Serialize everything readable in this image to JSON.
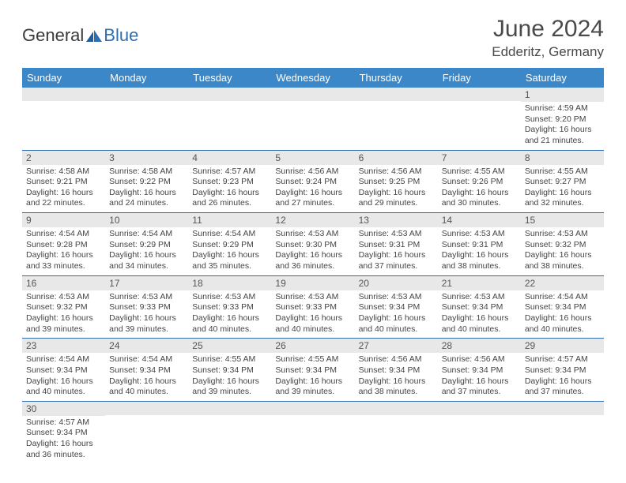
{
  "logo": {
    "text1": "General",
    "text2": "Blue"
  },
  "title": "June 2024",
  "location": "Edderitz, Germany",
  "weekdays": [
    "Sunday",
    "Monday",
    "Tuesday",
    "Wednesday",
    "Thursday",
    "Friday",
    "Saturday"
  ],
  "colors": {
    "header_bg": "#3b87c8",
    "header_text": "#ffffff",
    "daynum_bg": "#e8e8e8",
    "border": "#2f6fb0",
    "logo_blue": "#2f6fb0"
  },
  "cells": [
    [
      {
        "day": "",
        "lines": []
      },
      {
        "day": "",
        "lines": []
      },
      {
        "day": "",
        "lines": []
      },
      {
        "day": "",
        "lines": []
      },
      {
        "day": "",
        "lines": []
      },
      {
        "day": "",
        "lines": []
      },
      {
        "day": "1",
        "lines": [
          "Sunrise: 4:59 AM",
          "Sunset: 9:20 PM",
          "Daylight: 16 hours and 21 minutes."
        ]
      }
    ],
    [
      {
        "day": "2",
        "lines": [
          "Sunrise: 4:58 AM",
          "Sunset: 9:21 PM",
          "Daylight: 16 hours and 22 minutes."
        ]
      },
      {
        "day": "3",
        "lines": [
          "Sunrise: 4:58 AM",
          "Sunset: 9:22 PM",
          "Daylight: 16 hours and 24 minutes."
        ]
      },
      {
        "day": "4",
        "lines": [
          "Sunrise: 4:57 AM",
          "Sunset: 9:23 PM",
          "Daylight: 16 hours and 26 minutes."
        ]
      },
      {
        "day": "5",
        "lines": [
          "Sunrise: 4:56 AM",
          "Sunset: 9:24 PM",
          "Daylight: 16 hours and 27 minutes."
        ]
      },
      {
        "day": "6",
        "lines": [
          "Sunrise: 4:56 AM",
          "Sunset: 9:25 PM",
          "Daylight: 16 hours and 29 minutes."
        ]
      },
      {
        "day": "7",
        "lines": [
          "Sunrise: 4:55 AM",
          "Sunset: 9:26 PM",
          "Daylight: 16 hours and 30 minutes."
        ]
      },
      {
        "day": "8",
        "lines": [
          "Sunrise: 4:55 AM",
          "Sunset: 9:27 PM",
          "Daylight: 16 hours and 32 minutes."
        ]
      }
    ],
    [
      {
        "day": "9",
        "lines": [
          "Sunrise: 4:54 AM",
          "Sunset: 9:28 PM",
          "Daylight: 16 hours and 33 minutes."
        ]
      },
      {
        "day": "10",
        "lines": [
          "Sunrise: 4:54 AM",
          "Sunset: 9:29 PM",
          "Daylight: 16 hours and 34 minutes."
        ]
      },
      {
        "day": "11",
        "lines": [
          "Sunrise: 4:54 AM",
          "Sunset: 9:29 PM",
          "Daylight: 16 hours and 35 minutes."
        ]
      },
      {
        "day": "12",
        "lines": [
          "Sunrise: 4:53 AM",
          "Sunset: 9:30 PM",
          "Daylight: 16 hours and 36 minutes."
        ]
      },
      {
        "day": "13",
        "lines": [
          "Sunrise: 4:53 AM",
          "Sunset: 9:31 PM",
          "Daylight: 16 hours and 37 minutes."
        ]
      },
      {
        "day": "14",
        "lines": [
          "Sunrise: 4:53 AM",
          "Sunset: 9:31 PM",
          "Daylight: 16 hours and 38 minutes."
        ]
      },
      {
        "day": "15",
        "lines": [
          "Sunrise: 4:53 AM",
          "Sunset: 9:32 PM",
          "Daylight: 16 hours and 38 minutes."
        ]
      }
    ],
    [
      {
        "day": "16",
        "lines": [
          "Sunrise: 4:53 AM",
          "Sunset: 9:32 PM",
          "Daylight: 16 hours and 39 minutes."
        ]
      },
      {
        "day": "17",
        "lines": [
          "Sunrise: 4:53 AM",
          "Sunset: 9:33 PM",
          "Daylight: 16 hours and 39 minutes."
        ]
      },
      {
        "day": "18",
        "lines": [
          "Sunrise: 4:53 AM",
          "Sunset: 9:33 PM",
          "Daylight: 16 hours and 40 minutes."
        ]
      },
      {
        "day": "19",
        "lines": [
          "Sunrise: 4:53 AM",
          "Sunset: 9:33 PM",
          "Daylight: 16 hours and 40 minutes."
        ]
      },
      {
        "day": "20",
        "lines": [
          "Sunrise: 4:53 AM",
          "Sunset: 9:34 PM",
          "Daylight: 16 hours and 40 minutes."
        ]
      },
      {
        "day": "21",
        "lines": [
          "Sunrise: 4:53 AM",
          "Sunset: 9:34 PM",
          "Daylight: 16 hours and 40 minutes."
        ]
      },
      {
        "day": "22",
        "lines": [
          "Sunrise: 4:54 AM",
          "Sunset: 9:34 PM",
          "Daylight: 16 hours and 40 minutes."
        ]
      }
    ],
    [
      {
        "day": "23",
        "lines": [
          "Sunrise: 4:54 AM",
          "Sunset: 9:34 PM",
          "Daylight: 16 hours and 40 minutes."
        ]
      },
      {
        "day": "24",
        "lines": [
          "Sunrise: 4:54 AM",
          "Sunset: 9:34 PM",
          "Daylight: 16 hours and 40 minutes."
        ]
      },
      {
        "day": "25",
        "lines": [
          "Sunrise: 4:55 AM",
          "Sunset: 9:34 PM",
          "Daylight: 16 hours and 39 minutes."
        ]
      },
      {
        "day": "26",
        "lines": [
          "Sunrise: 4:55 AM",
          "Sunset: 9:34 PM",
          "Daylight: 16 hours and 39 minutes."
        ]
      },
      {
        "day": "27",
        "lines": [
          "Sunrise: 4:56 AM",
          "Sunset: 9:34 PM",
          "Daylight: 16 hours and 38 minutes."
        ]
      },
      {
        "day": "28",
        "lines": [
          "Sunrise: 4:56 AM",
          "Sunset: 9:34 PM",
          "Daylight: 16 hours and 37 minutes."
        ]
      },
      {
        "day": "29",
        "lines": [
          "Sunrise: 4:57 AM",
          "Sunset: 9:34 PM",
          "Daylight: 16 hours and 37 minutes."
        ]
      }
    ],
    [
      {
        "day": "30",
        "lines": [
          "Sunrise: 4:57 AM",
          "Sunset: 9:34 PM",
          "Daylight: 16 hours and 36 minutes."
        ]
      },
      {
        "day": "",
        "lines": []
      },
      {
        "day": "",
        "lines": []
      },
      {
        "day": "",
        "lines": []
      },
      {
        "day": "",
        "lines": []
      },
      {
        "day": "",
        "lines": []
      },
      {
        "day": "",
        "lines": []
      }
    ]
  ]
}
